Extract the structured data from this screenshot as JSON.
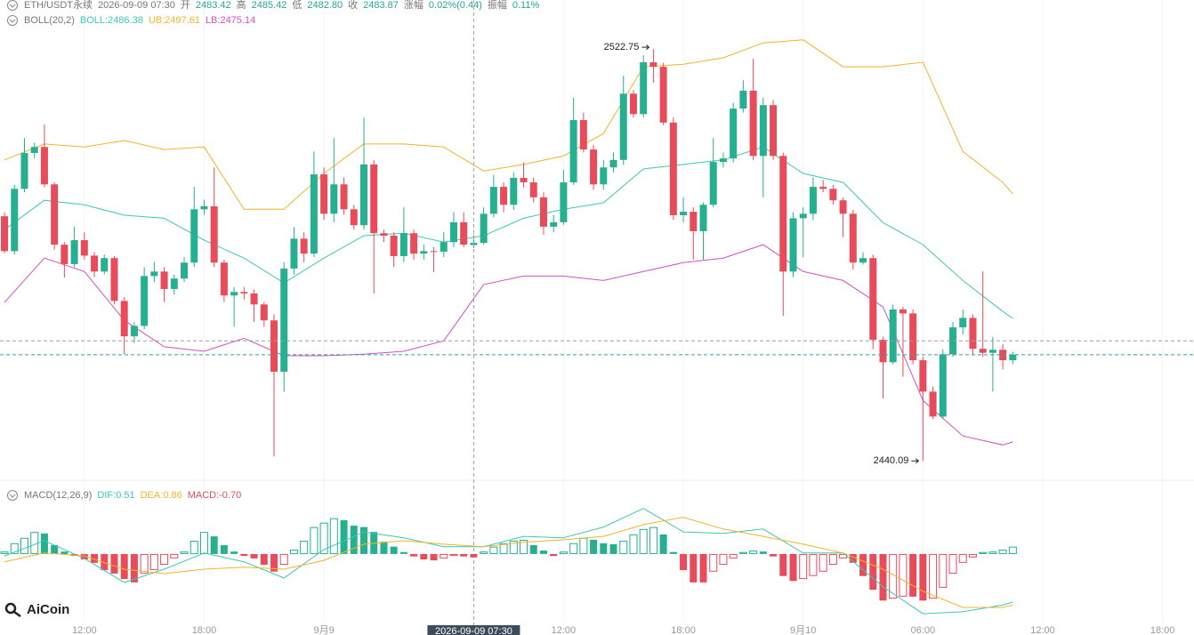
{
  "brand": "AiCoin",
  "chart_data": [
    {
      "type": "candlestick",
      "header": {
        "symbol": "ETH/USDT永续",
        "time": "2026-09-09 07:30",
        "fields": [
          [
            "开",
            "2483.42"
          ],
          [
            "高",
            "2485.42"
          ],
          [
            "低",
            "2482.80"
          ],
          [
            "收",
            "2483.87"
          ],
          [
            "涨幅",
            "0.02%(0.44)"
          ],
          [
            "振幅",
            "0.11%"
          ]
        ]
      },
      "indicator": "BOLL(20,2)",
      "up_color": "#26b08f",
      "down_color": "#e84c5a",
      "ylim": [
        2438,
        2532.6
      ],
      "xlim": [
        -0.45,
        119.15
      ],
      "xticks": [
        {
          "value": 8,
          "label": "12:00"
        },
        {
          "value": 20,
          "label": "18:00"
        },
        {
          "value": 32,
          "label": "9月9"
        },
        {
          "value": 56,
          "label": "12:00"
        },
        {
          "value": 68,
          "label": "18:00"
        },
        {
          "value": 80,
          "label": "9月10"
        },
        {
          "value": 92,
          "label": "06:00"
        },
        {
          "value": 104,
          "label": "12:00"
        },
        {
          "value": 116,
          "label": "18:00"
        }
      ],
      "crosshair": {
        "index": 47,
        "price": 2464.2,
        "label": "2026-09-09 07:30"
      },
      "candles": [
        [
          2489.2,
          2490.0,
          2481.8,
          2482.2
        ],
        [
          2482.2,
          2495.5,
          2481.5,
          2494.7
        ],
        [
          2494.7,
          2504.9,
          2494.0,
          2501.9
        ],
        [
          2501.9,
          2504.0,
          2500.8,
          2503.1
        ],
        [
          2503.1,
          2507.6,
          2495.0,
          2495.6
        ],
        [
          2495.6,
          2496.0,
          2482.5,
          2483.5
        ],
        [
          2483.5,
          2484.0,
          2476.9,
          2479.6
        ],
        [
          2479.6,
          2487.1,
          2479.0,
          2484.4
        ],
        [
          2484.4,
          2486.0,
          2480.5,
          2481.3
        ],
        [
          2481.3,
          2482.0,
          2477.0,
          2478.1
        ],
        [
          2478.1,
          2481.5,
          2477.5,
          2480.8
        ],
        [
          2480.8,
          2481.2,
          2471.5,
          2472.2
        ],
        [
          2472.2,
          2473.0,
          2461.5,
          2465.1
        ],
        [
          2465.1,
          2468.0,
          2463.8,
          2467.2
        ],
        [
          2467.2,
          2479.0,
          2466.5,
          2477.2
        ],
        [
          2477.2,
          2480.0,
          2476.0,
          2478.1
        ],
        [
          2478.1,
          2479.0,
          2472.0,
          2474.6
        ],
        [
          2474.6,
          2477.5,
          2473.5,
          2476.7
        ],
        [
          2476.7,
          2481.0,
          2476.0,
          2479.9
        ],
        [
          2479.9,
          2495.1,
          2479.0,
          2490.6
        ],
        [
          2490.6,
          2492.5,
          2489.5,
          2491.2
        ],
        [
          2491.2,
          2499.0,
          2479.0,
          2479.9
        ],
        [
          2479.9,
          2480.5,
          2472.0,
          2473.3
        ],
        [
          2473.3,
          2475.0,
          2467.0,
          2474.0
        ],
        [
          2474.0,
          2475.0,
          2472.5,
          2473.7
        ],
        [
          2473.7,
          2474.5,
          2468.0,
          2471.5
        ],
        [
          2471.5,
          2472.0,
          2467.0,
          2468.3
        ],
        [
          2468.3,
          2469.5,
          2441.0,
          2458.0
        ],
        [
          2458.0,
          2480.0,
          2454.0,
          2478.7
        ],
        [
          2478.7,
          2487.0,
          2477.5,
          2484.7
        ],
        [
          2484.7,
          2486.0,
          2480.0,
          2481.7
        ],
        [
          2481.7,
          2502.2,
          2481.0,
          2497.6
        ],
        [
          2497.6,
          2499.0,
          2488.5,
          2489.7
        ],
        [
          2489.7,
          2504.9,
          2488.0,
          2495.6
        ],
        [
          2495.6,
          2497.0,
          2489.5,
          2490.6
        ],
        [
          2490.6,
          2491.5,
          2486.5,
          2487.4
        ],
        [
          2487.4,
          2509.0,
          2486.5,
          2499.6
        ],
        [
          2499.6,
          2500.5,
          2473.7,
          2485.8
        ],
        [
          2485.8,
          2486.5,
          2484.0,
          2485.3
        ],
        [
          2485.3,
          2486.0,
          2479.0,
          2481.2
        ],
        [
          2481.2,
          2491.0,
          2480.0,
          2485.8
        ],
        [
          2485.8,
          2486.5,
          2480.5,
          2481.7
        ],
        [
          2481.7,
          2483.5,
          2480.5,
          2482.2
        ],
        [
          2482.2,
          2483.0,
          2478.0,
          2482.1
        ],
        [
          2482.1,
          2486.0,
          2481.0,
          2484.0
        ],
        [
          2484.0,
          2490.0,
          2483.0,
          2488.0
        ],
        [
          2488.0,
          2490.0,
          2483.0,
          2483.5
        ],
        [
          2483.42,
          2485.42,
          2482.8,
          2483.87
        ],
        [
          2483.87,
          2491.0,
          2483.5,
          2489.7
        ],
        [
          2489.7,
          2497.5,
          2489.0,
          2495.1
        ],
        [
          2495.1,
          2496.0,
          2490.0,
          2491.5
        ],
        [
          2491.5,
          2498.0,
          2490.5,
          2496.9
        ],
        [
          2496.9,
          2500.0,
          2495.0,
          2496.0
        ],
        [
          2496.0,
          2497.0,
          2492.0,
          2493.0
        ],
        [
          2493.0,
          2494.0,
          2485.5,
          2487.1
        ],
        [
          2487.1,
          2489.5,
          2486.0,
          2488.0
        ],
        [
          2488.0,
          2498.5,
          2487.5,
          2496.0
        ],
        [
          2496.0,
          2513.0,
          2495.5,
          2508.5
        ],
        [
          2508.5,
          2510.0,
          2502.0,
          2502.6
        ],
        [
          2502.6,
          2503.5,
          2494.5,
          2495.6
        ],
        [
          2495.6,
          2500.5,
          2494.5,
          2499.0
        ],
        [
          2499.0,
          2502.0,
          2498.0,
          2500.5
        ],
        [
          2500.5,
          2517.4,
          2499.5,
          2513.8
        ],
        [
          2513.8,
          2514.5,
          2509.0,
          2509.7
        ],
        [
          2509.7,
          2521.5,
          2509.0,
          2520.1
        ],
        [
          2520.1,
          2522.75,
          2516.0,
          2519.2
        ],
        [
          2519.2,
          2520.0,
          2507.5,
          2508.0
        ],
        [
          2508.0,
          2509.0,
          2488.5,
          2489.4
        ],
        [
          2489.4,
          2493.0,
          2488.0,
          2490.1
        ],
        [
          2490.1,
          2491.0,
          2480.5,
          2486.2
        ],
        [
          2486.2,
          2492.0,
          2480.5,
          2491.5
        ],
        [
          2491.5,
          2504.9,
          2491.0,
          2500.1
        ],
        [
          2500.1,
          2502.0,
          2499.0,
          2500.8
        ],
        [
          2500.8,
          2512.0,
          2500.0,
          2510.8
        ],
        [
          2510.8,
          2516.5,
          2510.0,
          2514.4
        ],
        [
          2514.4,
          2520.8,
          2500.5,
          2501.3
        ],
        [
          2501.3,
          2513.0,
          2493.0,
          2511.5
        ],
        [
          2511.5,
          2512.5,
          2500.5,
          2501.3
        ],
        [
          2501.3,
          2502.0,
          2469.2,
          2478.1
        ],
        [
          2478.1,
          2490.0,
          2477.0,
          2488.8
        ],
        [
          2488.8,
          2491.0,
          2481.0,
          2489.7
        ],
        [
          2489.7,
          2497.0,
          2488.5,
          2495.1
        ],
        [
          2495.1,
          2496.5,
          2494.0,
          2494.7
        ],
        [
          2494.7,
          2495.5,
          2491.5,
          2492.4
        ],
        [
          2492.4,
          2493.0,
          2485.0,
          2489.7
        ],
        [
          2489.7,
          2490.5,
          2478.5,
          2479.9
        ],
        [
          2479.9,
          2482.0,
          2479.5,
          2480.8
        ],
        [
          2480.8,
          2481.5,
          2462.5,
          2464.4
        ],
        [
          2464.4,
          2465.0,
          2452.6,
          2459.9
        ],
        [
          2459.9,
          2471.5,
          2459.5,
          2470.5
        ],
        [
          2470.5,
          2471.0,
          2457.0,
          2469.7
        ],
        [
          2469.7,
          2470.5,
          2459.5,
          2460.3
        ],
        [
          2460.3,
          2461.0,
          2440.09,
          2454.0
        ],
        [
          2454.0,
          2455.0,
          2448.5,
          2449.0
        ],
        [
          2449.0,
          2462.5,
          2448.5,
          2461.5
        ],
        [
          2461.5,
          2468.0,
          2461.0,
          2466.9
        ],
        [
          2466.9,
          2470.5,
          2465.5,
          2468.8
        ],
        [
          2468.8,
          2469.5,
          2461.5,
          2462.6
        ],
        [
          2462.6,
          2478.1,
          2461.0,
          2461.8
        ],
        [
          2461.8,
          2465.0,
          2454.0,
          2462.4
        ],
        [
          2462.4,
          2463.5,
          2458.5,
          2460.3
        ],
        [
          2460.3,
          2462.0,
          2459.5,
          2461.4
        ]
      ],
      "last_price_color": "#26a69a",
      "series": [
        {
          "name": "BOLL:2486.38",
          "color": "#3cc8b4",
          "x": [
            0,
            4,
            8,
            12,
            16,
            20,
            24,
            28,
            32,
            36,
            40,
            44,
            48,
            52,
            56,
            60,
            64,
            68,
            72,
            76,
            80,
            84,
            88,
            92,
            96,
            100,
            101
          ],
          "values": [
            2486.5,
            2492.4,
            2491.5,
            2489.4,
            2488.8,
            2484.4,
            2480.8,
            2475.8,
            2480.8,
            2485.3,
            2485.8,
            2484.0,
            2485.3,
            2488.8,
            2490.6,
            2491.9,
            2498.7,
            2499.6,
            2500.5,
            2503.1,
            2497.8,
            2496.0,
            2487.9,
            2483.5,
            2476.3,
            2470.1,
            2468.7
          ]
        },
        {
          "name": "UB:2497.61",
          "color": "#f0b429",
          "x": [
            0,
            4,
            8,
            12,
            16,
            20,
            24,
            28,
            32,
            36,
            40,
            44,
            48,
            52,
            56,
            60,
            64,
            68,
            72,
            76,
            80,
            84,
            88,
            92,
            96,
            100,
            101
          ],
          "values": [
            2500.5,
            2503.7,
            2503.1,
            2504.4,
            2502.6,
            2503.1,
            2490.6,
            2490.6,
            2497.8,
            2503.7,
            2503.7,
            2503.1,
            2498.3,
            2499.6,
            2501.3,
            2505.8,
            2519.2,
            2519.7,
            2521.0,
            2524.0,
            2524.6,
            2519.2,
            2519.2,
            2520.1,
            2502.2,
            2496.0,
            2493.7
          ]
        },
        {
          "name": "LB:2475.14",
          "color": "#d24fc4",
          "x": [
            0,
            4,
            8,
            12,
            16,
            20,
            24,
            28,
            32,
            36,
            40,
            44,
            48,
            52,
            56,
            60,
            64,
            68,
            72,
            76,
            80,
            84,
            88,
            92,
            96,
            100,
            101
          ],
          "values": [
            2471.9,
            2480.8,
            2478.1,
            2468.3,
            2463.0,
            2462.1,
            2464.7,
            2461.2,
            2461.2,
            2461.5,
            2462.1,
            2464.2,
            2475.5,
            2477.2,
            2477.2,
            2476.3,
            2478.1,
            2479.9,
            2480.8,
            2483.5,
            2478.1,
            2476.3,
            2471.0,
            2452.2,
            2445.1,
            2443.3,
            2443.9
          ]
        }
      ]
    },
    {
      "type": "macd",
      "indicator": "MACD(12,26,9)",
      "ylim": [
        -14.9,
        13.6
      ],
      "up_color": "#26b08f",
      "down_color": "#e84c5a",
      "histogram": {
        "name": "MACD:-0.70",
        "color": "#e84c5a",
        "values": [
          0.5,
          2.2,
          3.3,
          4.5,
          4.2,
          1.8,
          0.5,
          -0.4,
          -1.1,
          -1.8,
          -3.3,
          -4.0,
          -5.1,
          -5.8,
          -4.0,
          -3.3,
          -2.2,
          -0.9,
          0.5,
          2.7,
          4.5,
          3.6,
          1.8,
          0.5,
          -0.4,
          -0.9,
          -2.2,
          -3.6,
          -2.2,
          0.9,
          2.7,
          5.5,
          6.4,
          7.3,
          6.9,
          5.8,
          5.5,
          4.5,
          2.5,
          1.5,
          0.4,
          -0.5,
          -1.1,
          -1.3,
          -0.9,
          -0.4,
          -0.5,
          -0.7,
          0.5,
          1.5,
          2.2,
          2.7,
          2.9,
          1.8,
          0.7,
          -0.4,
          0.5,
          2.2,
          3.3,
          2.9,
          2.2,
          2.0,
          2.7,
          4.0,
          5.1,
          5.5,
          4.0,
          0.4,
          -3.3,
          -5.8,
          -5.8,
          -3.6,
          -2.2,
          -0.9,
          0.4,
          0.7,
          0.5,
          -0.5,
          -4.5,
          -5.5,
          -5.1,
          -4.5,
          -3.6,
          -2.2,
          -0.9,
          -1.8,
          -4.5,
          -7.3,
          -9.5,
          -9.1,
          -8.7,
          -8.7,
          -9.5,
          -9.1,
          -6.9,
          -4.0,
          -1.8,
          -0.7,
          0.4,
          0.5,
          0.9,
          1.5
        ]
      },
      "series": [
        {
          "name": "DIF:0.51",
          "color": "#3cc8b4",
          "x": [
            0,
            4,
            8,
            12,
            16,
            20,
            24,
            28,
            32,
            36,
            40,
            44,
            48,
            52,
            56,
            60,
            64,
            68,
            72,
            76,
            80,
            84,
            88,
            92,
            96,
            100,
            101
          ],
          "values": [
            -0.4,
            2.7,
            -0.9,
            -5.8,
            -3.1,
            0.2,
            -1.6,
            -4.9,
            0.9,
            4.5,
            3.3,
            1.5,
            1.5,
            3.6,
            3.3,
            5.5,
            9.3,
            4.5,
            4.2,
            5.1,
            0.2,
            0.2,
            -6.7,
            -12.2,
            -11.8,
            -10.4,
            -9.8
          ]
        },
        {
          "name": "DEA:0.86",
          "color": "#f0b429",
          "x": [
            0,
            4,
            8,
            12,
            16,
            20,
            24,
            28,
            32,
            36,
            40,
            44,
            48,
            52,
            56,
            60,
            64,
            68,
            72,
            76,
            80,
            84,
            88,
            92,
            96,
            100,
            101
          ],
          "values": [
            -1.6,
            0.2,
            -0.4,
            -3.1,
            -4.0,
            -3.1,
            -2.7,
            -3.1,
            -1.3,
            2.0,
            2.7,
            2.0,
            1.5,
            2.4,
            2.9,
            3.6,
            6.0,
            7.5,
            5.1,
            3.6,
            2.0,
            0.2,
            -3.1,
            -7.6,
            -10.9,
            -10.9,
            -10.4
          ]
        }
      ]
    }
  ]
}
